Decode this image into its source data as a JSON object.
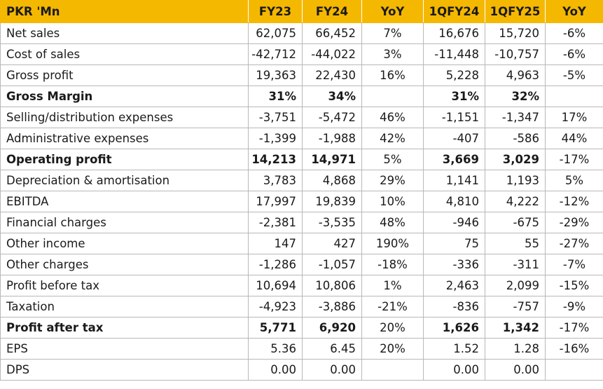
{
  "table": {
    "headers": [
      "PKR 'Mn",
      "FY23",
      "FY24",
      "YoY",
      "1QFY24",
      "1QFY25",
      "YoY"
    ],
    "rows": [
      {
        "label": "Net sales",
        "fy23": "62,075",
        "fy24": "66,452",
        "yoy1": "7%",
        "q24": "16,676",
        "q25": "15,720",
        "yoy2": "-6%",
        "bold": false
      },
      {
        "label": "Cost of sales",
        "fy23": "-42,712",
        "fy24": "-44,022",
        "yoy1": "3%",
        "q24": "-11,448",
        "q25": "-10,757",
        "yoy2": "-6%",
        "bold": false
      },
      {
        "label": "Gross profit",
        "fy23": "19,363",
        "fy24": "22,430",
        "yoy1": "16%",
        "q24": "5,228",
        "q25": "4,963",
        "yoy2": "-5%",
        "bold": false
      },
      {
        "label": "Gross Margin",
        "fy23": "31%",
        "fy24": "34%",
        "yoy1": "",
        "q24": "31%",
        "q25": "32%",
        "yoy2": "",
        "bold": true
      },
      {
        "label": "Selling/distribution expenses",
        "fy23": "-3,751",
        "fy24": "-5,472",
        "yoy1": "46%",
        "q24": "-1,151",
        "q25": "-1,347",
        "yoy2": "17%",
        "bold": false
      },
      {
        "label": "Administrative expenses",
        "fy23": "-1,399",
        "fy24": "-1,988",
        "yoy1": "42%",
        "q24": "-407",
        "q25": "-586",
        "yoy2": "44%",
        "bold": false
      },
      {
        "label": "Operating profit",
        "fy23": "14,213",
        "fy24": "14,971",
        "yoy1": "5%",
        "q24": "3,669",
        "q25": "3,029",
        "yoy2": "-17%",
        "bold": true
      },
      {
        "label": "Depreciation & amortisation",
        "fy23": "3,783",
        "fy24": "4,868",
        "yoy1": "29%",
        "q24": "1,141",
        "q25": "1,193",
        "yoy2": "5%",
        "bold": false
      },
      {
        "label": "EBITDA",
        "fy23": "17,997",
        "fy24": "19,839",
        "yoy1": "10%",
        "q24": "4,810",
        "q25": "4,222",
        "yoy2": "-12%",
        "bold": false
      },
      {
        "label": "Financial charges",
        "fy23": "-2,381",
        "fy24": "-3,535",
        "yoy1": "48%",
        "q24": "-946",
        "q25": "-675",
        "yoy2": "-29%",
        "bold": false
      },
      {
        "label": "Other income",
        "fy23": "147",
        "fy24": "427",
        "yoy1": "190%",
        "q24": "75",
        "q25": "55",
        "yoy2": "-27%",
        "bold": false
      },
      {
        "label": "Other charges",
        "fy23": "-1,286",
        "fy24": "-1,057",
        "yoy1": "-18%",
        "q24": "-336",
        "q25": "-311",
        "yoy2": "-7%",
        "bold": false
      },
      {
        "label": "Profit before tax",
        "fy23": "10,694",
        "fy24": "10,806",
        "yoy1": "1%",
        "q24": "2,463",
        "q25": "2,099",
        "yoy2": "-15%",
        "bold": false
      },
      {
        "label": "Taxation",
        "fy23": "-4,923",
        "fy24": "-3,886",
        "yoy1": "-21%",
        "q24": "-836",
        "q25": "-757",
        "yoy2": "-9%",
        "bold": false
      },
      {
        "label": "Profit after tax",
        "fy23": "5,771",
        "fy24": "6,920",
        "yoy1": "20%",
        "q24": "1,626",
        "q25": "1,342",
        "yoy2": "-17%",
        "bold": true
      },
      {
        "label": "EPS",
        "fy23": "5.36",
        "fy24": "6.45",
        "yoy1": "20%",
        "q24": "1.52",
        "q25": "1.28",
        "yoy2": "-16%",
        "bold": false
      },
      {
        "label": "DPS",
        "fy23": "0.00",
        "fy24": "0.00",
        "yoy1": "",
        "q24": "0.00",
        "q25": "0.00",
        "yoy2": "",
        "bold": false
      }
    ]
  },
  "colors": {
    "header_bg": "#f5b800",
    "grid": "#b8b8b8",
    "text": "#1a1a1a"
  }
}
